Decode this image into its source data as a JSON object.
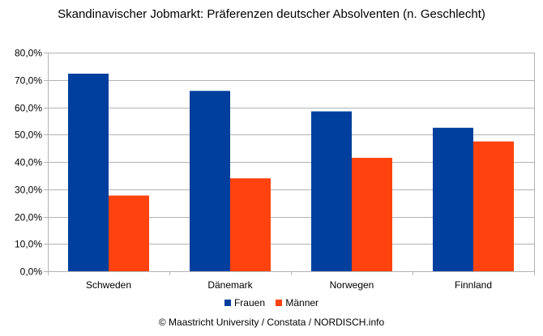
{
  "chart_data": {
    "type": "bar",
    "title": "Skandinavischer Jobmarkt: Präferenzen deutscher Absolventen (n. Geschlecht)",
    "categories": [
      "Schweden",
      "Dänemark",
      "Norwegen",
      "Finnland"
    ],
    "series": [
      {
        "name": "Frauen",
        "values": [
          72.3,
          66.0,
          58.5,
          52.5
        ],
        "color": "#003f9d"
      },
      {
        "name": "Männer",
        "values": [
          27.7,
          34.0,
          41.5,
          47.5
        ],
        "color": "#ff420e"
      }
    ],
    "xlabel": "",
    "ylabel": "",
    "ylim": [
      0,
      80
    ],
    "yticks": [
      "0,0%",
      "10,0%",
      "20,0%",
      "30,0%",
      "40,0%",
      "50,0%",
      "60,0%",
      "70,0%",
      "80,0%"
    ],
    "grid": true,
    "legend_position": "bottom",
    "source": "© Maastricht University / Constata / NORDISCH.info"
  }
}
